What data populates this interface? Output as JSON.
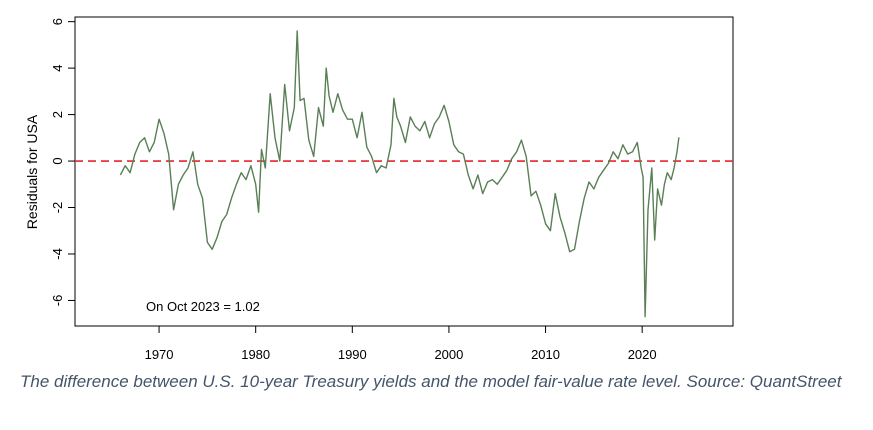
{
  "chart_data": {
    "type": "line",
    "title": "",
    "xlabel": "",
    "ylabel": "Residuals for USA",
    "xlim": [
      1961.3,
      2029.4
    ],
    "ylim": [
      -7.1,
      6.2
    ],
    "x_ticks": [
      "1970",
      "1980",
      "1990",
      "2000",
      "2010",
      "2020"
    ],
    "y_ticks": [
      "6",
      "4",
      "2",
      "0",
      "-2",
      "-4",
      "-6"
    ],
    "grid": false,
    "legend": "none",
    "reference_line": {
      "y": 0,
      "style": "dashed",
      "color": "#e8262b"
    },
    "line_color": "#5a7f56",
    "annotation": "On Oct 2023 = 1.02",
    "series": [
      {
        "x": [
          1966.0,
          1966.5,
          1967.0,
          1967.5,
          1968.0,
          1968.5,
          1969.0,
          1969.5,
          1970.0,
          1970.5,
          1971.0,
          1971.5,
          1972.0,
          1972.5,
          1973.0,
          1973.5,
          1974.0,
          1974.5,
          1975.0,
          1975.5,
          1976.0,
          1976.5,
          1977.0,
          1977.5,
          1978.0,
          1978.5,
          1979.0,
          1979.5,
          1980.0,
          1980.3,
          1980.6,
          1981.0,
          1981.5,
          1982.0,
          1982.5,
          1983.0,
          1983.5,
          1984.0,
          1984.3,
          1984.6,
          1985.0,
          1985.5,
          1986.0,
          1986.5,
          1987.0,
          1987.3,
          1987.6,
          1988.0,
          1988.5,
          1989.0,
          1989.5,
          1990.0,
          1990.5,
          1991.0,
          1991.5,
          1992.0,
          1992.5,
          1993.0,
          1993.5,
          1994.0,
          1994.3,
          1994.6,
          1995.0,
          1995.5,
          1996.0,
          1996.5,
          1997.0,
          1997.5,
          1998.0,
          1998.5,
          1999.0,
          1999.5,
          2000.0,
          2000.5,
          2001.0,
          2001.5,
          2002.0,
          2002.5,
          2003.0,
          2003.5,
          2004.0,
          2004.5,
          2005.0,
          2005.5,
          2006.0,
          2006.5,
          2007.0,
          2007.5,
          2008.0,
          2008.5,
          2009.0,
          2009.5,
          2010.0,
          2010.5,
          2011.0,
          2011.5,
          2012.0,
          2012.5,
          2013.0,
          2013.5,
          2014.0,
          2014.5,
          2015.0,
          2015.5,
          2016.0,
          2016.5,
          2017.0,
          2017.5,
          2018.0,
          2018.5,
          2019.0,
          2019.5,
          2019.9,
          2020.1,
          2020.3,
          2020.6,
          2021.0,
          2021.3,
          2021.6,
          2022.0,
          2022.3,
          2022.6,
          2023.0,
          2023.3,
          2023.6,
          2023.8
        ],
        "y": [
          -0.6,
          -0.2,
          -0.5,
          0.3,
          0.8,
          1.0,
          0.4,
          0.8,
          1.8,
          1.2,
          0.3,
          -2.1,
          -1.0,
          -0.6,
          -0.3,
          0.4,
          -1.0,
          -1.6,
          -3.5,
          -3.8,
          -3.3,
          -2.6,
          -2.3,
          -1.6,
          -1.0,
          -0.5,
          -0.8,
          -0.2,
          -1.0,
          -2.2,
          0.5,
          -0.3,
          2.9,
          1.0,
          0.0,
          3.3,
          1.3,
          2.3,
          5.6,
          2.6,
          2.7,
          0.9,
          0.2,
          2.3,
          1.5,
          4.0,
          2.8,
          2.1,
          2.9,
          2.2,
          1.8,
          1.8,
          1.0,
          2.1,
          0.6,
          0.2,
          -0.5,
          -0.2,
          -0.3,
          0.7,
          2.7,
          1.9,
          1.5,
          0.8,
          1.9,
          1.5,
          1.3,
          1.7,
          1.0,
          1.6,
          1.9,
          2.4,
          1.7,
          0.7,
          0.4,
          0.3,
          -0.6,
          -1.2,
          -0.6,
          -1.4,
          -0.9,
          -0.8,
          -1.0,
          -0.7,
          -0.4,
          0.1,
          0.4,
          0.9,
          0.2,
          -1.5,
          -1.3,
          -1.9,
          -2.7,
          -3.0,
          -1.4,
          -2.4,
          -3.1,
          -3.9,
          -3.8,
          -2.6,
          -1.6,
          -0.9,
          -1.2,
          -0.7,
          -0.4,
          -0.1,
          0.4,
          0.1,
          0.7,
          0.3,
          0.4,
          0.8,
          -0.3,
          -0.7,
          -6.7,
          -2.1,
          -0.3,
          -3.4,
          -1.2,
          -1.9,
          -1.0,
          -0.5,
          -0.8,
          -0.3,
          0.4,
          1.02
        ]
      }
    ]
  },
  "caption": "The difference between U.S. 10-year Treasury yields and the model fair-value rate level. Source: QuantStreet"
}
